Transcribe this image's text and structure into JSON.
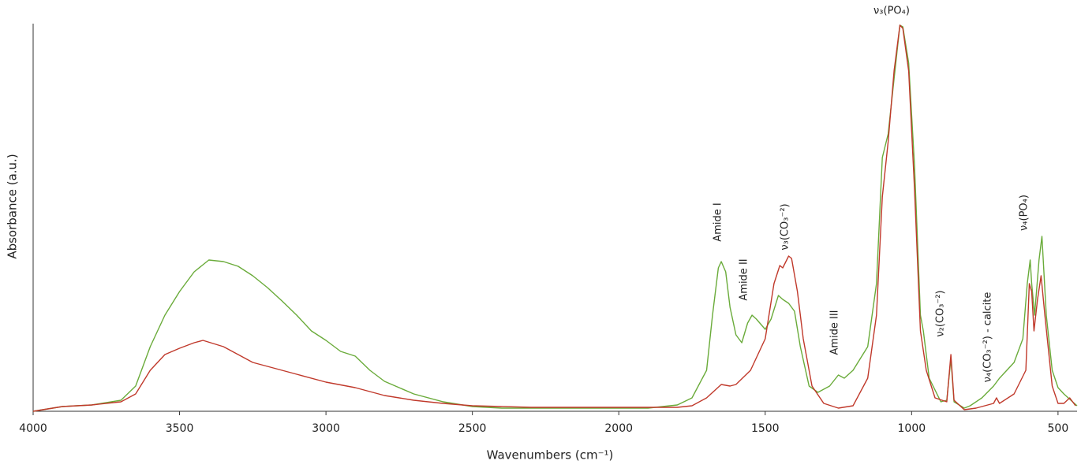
{
  "chart_data": {
    "type": "line",
    "x_label": "Wavenumbers (cm⁻¹)",
    "y_label": "Absorbance (a.u.)",
    "xlim": [
      4000,
      435
    ],
    "xticks": [
      4000,
      3500,
      3000,
      2500,
      2000,
      1500,
      1000,
      500
    ],
    "ylim": [
      0,
      504
    ],
    "annotations": [
      "Amide I",
      "Amide II",
      "ν₃(CO₃⁻²)",
      "Amide III",
      "ν₃(PO₄)",
      "ν₂(CO₃⁻²)",
      "ν₄(CO₃⁻²) - calcite",
      "ν₄(PO₄)"
    ],
    "series": [
      {
        "color": "#6aab3a",
        "x": [
          4000,
          3900,
          3800,
          3700,
          3650,
          3600,
          3550,
          3500,
          3450,
          3400,
          3350,
          3300,
          3250,
          3200,
          3150,
          3100,
          3050,
          3000,
          2950,
          2900,
          2850,
          2800,
          2700,
          2600,
          2500,
          2400,
          2200,
          2000,
          1900,
          1800,
          1750,
          1700,
          1680,
          1660,
          1650,
          1635,
          1620,
          1600,
          1580,
          1560,
          1545,
          1530,
          1500,
          1480,
          1455,
          1440,
          1420,
          1400,
          1380,
          1350,
          1320,
          1280,
          1250,
          1230,
          1200,
          1150,
          1120,
          1100,
          1080,
          1060,
          1040,
          1030,
          1010,
          990,
          970,
          960,
          940,
          900,
          880,
          866,
          855,
          820,
          800,
          760,
          720,
          700,
          650,
          620,
          605,
          595,
          590,
          580,
          565,
          555,
          540,
          520,
          500,
          480,
          450,
          435
        ],
        "values": [
          0,
          6,
          8,
          14,
          32,
          82,
          122,
          152,
          177,
          192,
          190,
          184,
          172,
          157,
          140,
          122,
          102,
          90,
          76,
          70,
          52,
          38,
          22,
          12,
          6,
          4,
          4,
          4,
          4,
          8,
          17,
          52,
          122,
          182,
          190,
          177,
          132,
          97,
          87,
          112,
          122,
          117,
          104,
          117,
          147,
          142,
          137,
          127,
          82,
          32,
          24,
          32,
          46,
          42,
          52,
          82,
          162,
          322,
          352,
          422,
          490,
          488,
          442,
          312,
          122,
          102,
          42,
          12,
          14,
          67,
          12,
          4,
          7,
          17,
          32,
          42,
          62,
          92,
          162,
          192,
          162,
          122,
          192,
          222,
          122,
          52,
          30,
          22,
          12,
          7
        ]
      },
      {
        "color": "#c0392b",
        "x": [
          4000,
          3900,
          3800,
          3700,
          3650,
          3600,
          3550,
          3500,
          3450,
          3420,
          3350,
          3300,
          3250,
          3200,
          3100,
          3000,
          2900,
          2800,
          2700,
          2600,
          2500,
          2300,
          2000,
          1800,
          1750,
          1700,
          1650,
          1620,
          1600,
          1550,
          1500,
          1470,
          1450,
          1440,
          1420,
          1410,
          1390,
          1370,
          1340,
          1300,
          1250,
          1200,
          1150,
          1120,
          1100,
          1080,
          1060,
          1040,
          1030,
          1010,
          990,
          970,
          950,
          920,
          880,
          866,
          855,
          820,
          780,
          720,
          710,
          700,
          650,
          610,
          598,
          590,
          582,
          570,
          558,
          545,
          520,
          500,
          480,
          460,
          440
        ],
        "values": [
          0,
          6,
          8,
          12,
          22,
          52,
          72,
          80,
          87,
          90,
          82,
          72,
          62,
          57,
          47,
          37,
          30,
          20,
          14,
          10,
          7,
          5,
          5,
          5,
          7,
          17,
          34,
          32,
          34,
          52,
          92,
          162,
          185,
          182,
          197,
          194,
          152,
          92,
          32,
          10,
          4,
          7,
          42,
          122,
          272,
          342,
          432,
          490,
          486,
          432,
          282,
          102,
          52,
          17,
          12,
          72,
          14,
          2,
          4,
          10,
          17,
          10,
          22,
          52,
          162,
          152,
          102,
          142,
          172,
          122,
          32,
          10,
          10,
          17,
          7
        ]
      }
    ]
  }
}
